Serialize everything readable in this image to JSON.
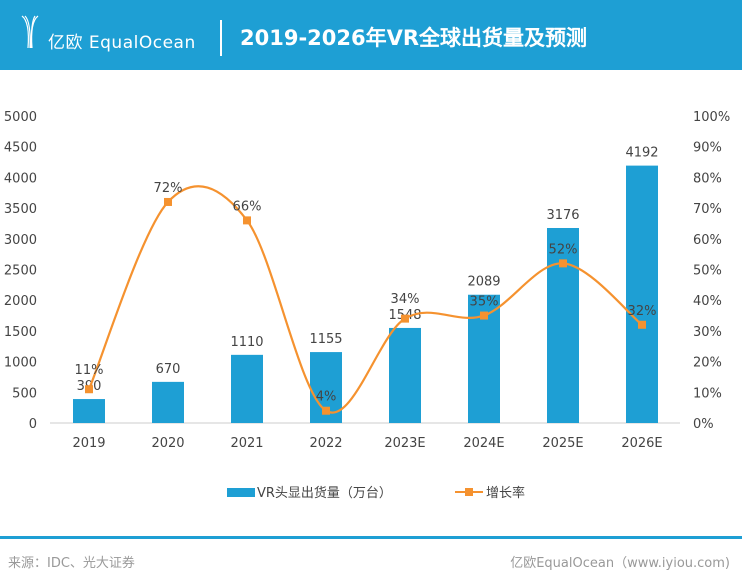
{
  "header": {
    "brand": "亿欧 EqualOcean",
    "title": "2019-2026年VR全球出货量及预测"
  },
  "footer": {
    "source": "来源：IDC、光大证券",
    "credit": "亿欧EqualOcean（www.iyiou.com)"
  },
  "colors": {
    "header": "#1e9fd4",
    "bar": "#1e9fd4",
    "line": "#f5922f"
  },
  "chart_data": {
    "type": "bar+line",
    "categories": [
      "2019",
      "2020",
      "2021",
      "2022",
      "2023E",
      "2024E",
      "2025E",
      "2026E"
    ],
    "series": [
      {
        "name": "VR头显出货量（万台）",
        "type": "bar",
        "axis": "left",
        "values": [
          390,
          670,
          1110,
          1155,
          1548,
          2089,
          3176,
          4192
        ],
        "labels": [
          "390",
          "670",
          "1110",
          "1155",
          "1548",
          "2089",
          "3176",
          "4192"
        ]
      },
      {
        "name": "增长率",
        "type": "line",
        "axis": "right",
        "values": [
          11,
          72,
          66,
          4,
          34,
          35,
          52,
          32
        ],
        "labels": [
          "11%",
          "72%",
          "66%",
          "4%",
          "34%",
          "35%",
          "52%",
          "32%"
        ]
      }
    ],
    "left_axis": {
      "ylim": [
        0,
        5000
      ],
      "ticks": [
        "0",
        "500",
        "1000",
        "1500",
        "2000",
        "2500",
        "3000",
        "3500",
        "4000",
        "4500",
        "5000"
      ]
    },
    "right_axis": {
      "ylim": [
        0,
        100
      ],
      "ticks": [
        "0%",
        "10%",
        "20%",
        "30%",
        "40%",
        "50%",
        "60%",
        "70%",
        "80%",
        "90%",
        "100%"
      ]
    },
    "grid": false,
    "legend": "bottom"
  }
}
